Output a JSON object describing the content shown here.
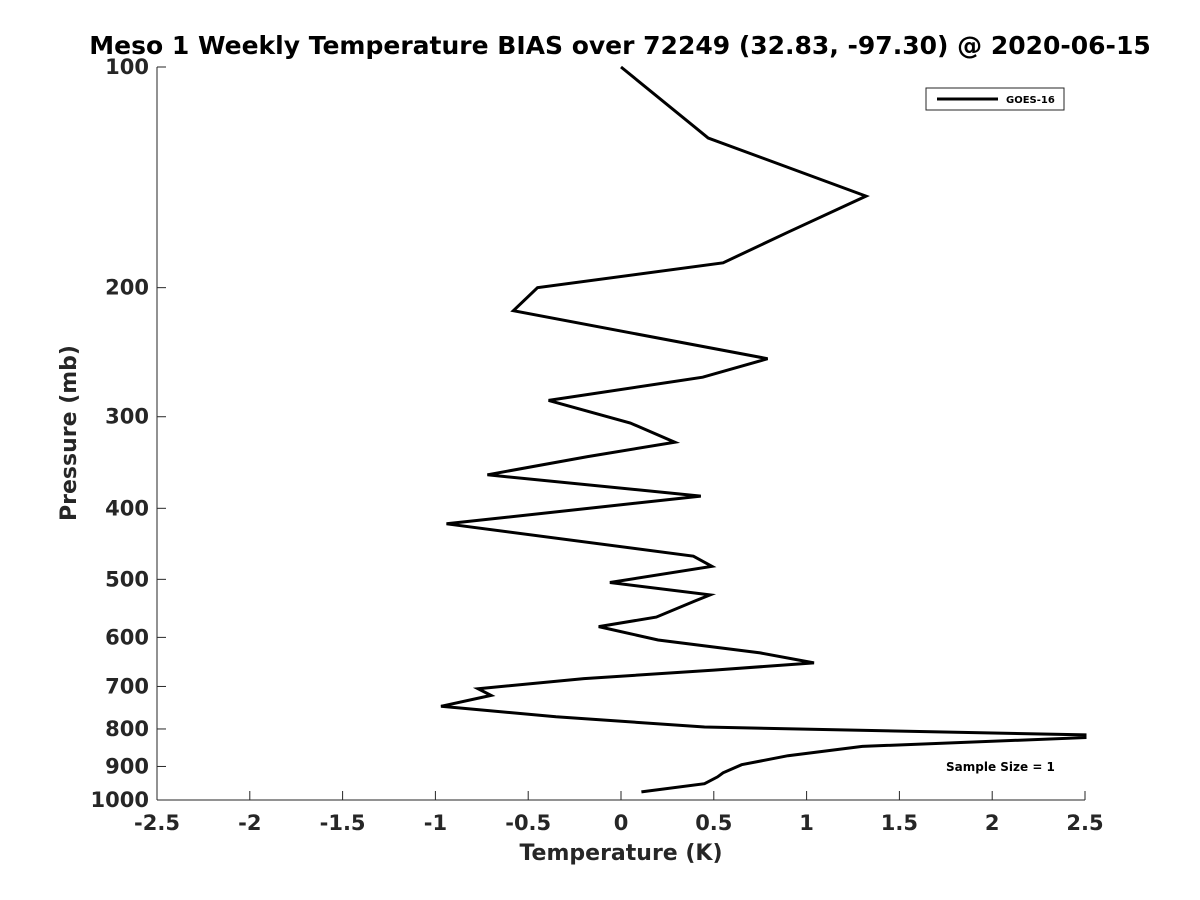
{
  "chart_data": {
    "type": "line",
    "title": "Meso 1 Weekly Temperature BIAS over 72249 (32.83, -97.30) @ 2020-06-15",
    "xlabel": "Temperature (K)",
    "ylabel": "Pressure (mb)",
    "xlim": [
      -2.5,
      2.5
    ],
    "ylim": [
      100,
      1000
    ],
    "y_scale": "log",
    "y_reversed": true,
    "xticks": [
      "-2.5",
      "-2",
      "-1.5",
      "-1",
      "-0.5",
      "0",
      "0.5",
      "1",
      "1.5",
      "2",
      "2.5"
    ],
    "yticks": [
      "100",
      "200",
      "300",
      "400",
      "500",
      "600",
      "700",
      "800",
      "900",
      "1000"
    ],
    "grid": false,
    "legend_position": "top-right",
    "annotation": "Sample Size = 1",
    "color": "#000000",
    "series": [
      {
        "name": "GOES-16",
        "points": [
          {
            "t": 0.0,
            "p": 100
          },
          {
            "t": 0.47,
            "p": 125
          },
          {
            "t": 1.32,
            "p": 150
          },
          {
            "t": 0.9,
            "p": 168
          },
          {
            "t": 0.55,
            "p": 185
          },
          {
            "t": -0.45,
            "p": 200
          },
          {
            "t": -0.58,
            "p": 215
          },
          {
            "t": 0.79,
            "p": 250
          },
          {
            "t": 0.44,
            "p": 265
          },
          {
            "t": -0.39,
            "p": 285
          },
          {
            "t": 0.05,
            "p": 306
          },
          {
            "t": 0.29,
            "p": 325
          },
          {
            "t": -0.18,
            "p": 340
          },
          {
            "t": -0.72,
            "p": 360
          },
          {
            "t": 0.43,
            "p": 385
          },
          {
            "t": -0.94,
            "p": 420
          },
          {
            "t": 0.39,
            "p": 465
          },
          {
            "t": 0.49,
            "p": 480
          },
          {
            "t": -0.06,
            "p": 505
          },
          {
            "t": 0.48,
            "p": 525
          },
          {
            "t": 0.4,
            "p": 535
          },
          {
            "t": 0.19,
            "p": 563
          },
          {
            "t": -0.12,
            "p": 580
          },
          {
            "t": 0.2,
            "p": 605
          },
          {
            "t": 0.75,
            "p": 630
          },
          {
            "t": 1.04,
            "p": 650
          },
          {
            "t": 0.5,
            "p": 665
          },
          {
            "t": -0.2,
            "p": 683
          },
          {
            "t": -0.77,
            "p": 705
          },
          {
            "t": -0.7,
            "p": 720
          },
          {
            "t": -0.97,
            "p": 745
          },
          {
            "t": -0.35,
            "p": 770
          },
          {
            "t": 0.45,
            "p": 795
          },
          {
            "t": 2.5,
            "p": 815
          },
          {
            "t": 2.5,
            "p": 822
          },
          {
            "t": 1.3,
            "p": 845
          },
          {
            "t": 0.9,
            "p": 870
          },
          {
            "t": 0.65,
            "p": 895
          },
          {
            "t": 0.55,
            "p": 918
          },
          {
            "t": 0.52,
            "p": 930
          },
          {
            "t": 0.45,
            "p": 950
          },
          {
            "t": 0.11,
            "p": 975
          }
        ]
      }
    ]
  }
}
